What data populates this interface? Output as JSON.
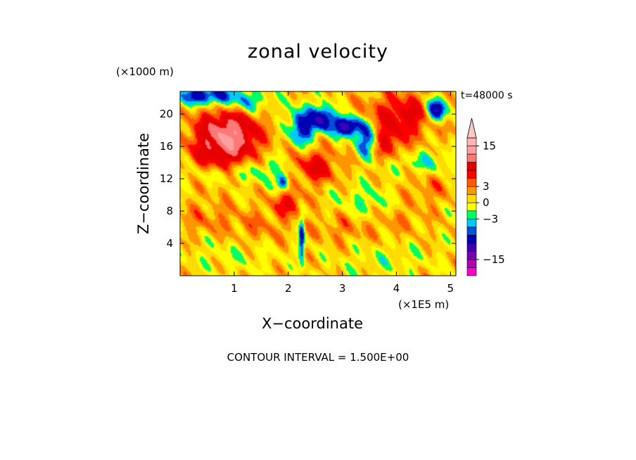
{
  "chart_data": {
    "type": "heatmap",
    "title": "zonal velocity",
    "time_label": "t=48000 s",
    "xlabel": "X−coordinate",
    "ylabel": "Z−coordinate",
    "x_unit": "(×1E5 m)",
    "y_unit": "(×1000 m)",
    "xlim": [
      0,
      5.1
    ],
    "ylim": [
      0,
      22.8
    ],
    "x_ticks": [
      1,
      2,
      3,
      4,
      5
    ],
    "y_ticks": [
      4,
      8,
      12,
      16,
      20
    ],
    "footer": "CONTOUR INTERVAL = 1.500E+00",
    "colorbar": {
      "levels": [
        -19.5,
        -18,
        -15,
        -12,
        -9,
        -6,
        -4.5,
        -3,
        -1.5,
        0,
        1.5,
        3,
        4.5,
        6,
        9,
        12,
        15,
        18,
        19.5
      ],
      "colors": [
        "#ff00cc",
        "#b400b4",
        "#7800a8",
        "#3c00b4",
        "#0000b4",
        "#0050d8",
        "#00c8ff",
        "#00ff64",
        "#ffff00",
        "#ffdc00",
        "#ff9600",
        "#ff5a00",
        "#ff0000",
        "#e60000",
        "#ff7878",
        "#ffa0a0",
        "#ffb4b4",
        "#ffc8c8"
      ],
      "tick_values": [
        15,
        3,
        0,
        -3,
        -15
      ],
      "tick_labels": [
        "15",
        "3",
        "0",
        "−3",
        "−15"
      ]
    },
    "field_blobs": [
      {
        "x": 0.7,
        "z": 16.5,
        "value": 7,
        "rx": 0.55,
        "rz": 4.0
      },
      {
        "x": 1.05,
        "z": 17.5,
        "value": 6,
        "rx": 0.5,
        "rz": 3.0
      },
      {
        "x": 0.45,
        "z": 22.3,
        "value": -9,
        "rx": 0.5,
        "rz": 1.2
      },
      {
        "x": 1.2,
        "z": 21.5,
        "value": -5,
        "rx": 0.45,
        "rz": 1.5
      },
      {
        "x": 2.25,
        "z": 18.5,
        "value": -9,
        "rx": 0.22,
        "rz": 2.2
      },
      {
        "x": 2.65,
        "z": 19.5,
        "value": -10,
        "rx": 0.2,
        "rz": 1.6
      },
      {
        "x": 3.1,
        "z": 18.5,
        "value": -12,
        "rx": 0.25,
        "rz": 1.2
      },
      {
        "x": 3.45,
        "z": 16.8,
        "value": -9,
        "rx": 0.2,
        "rz": 2.0
      },
      {
        "x": 4.75,
        "z": 20.5,
        "value": -12,
        "rx": 0.2,
        "rz": 1.5
      },
      {
        "x": 4.15,
        "z": 20.0,
        "value": 6,
        "rx": 0.7,
        "rz": 2.5
      },
      {
        "x": 2.5,
        "z": 13.5,
        "value": 6,
        "rx": 0.4,
        "rz": 2.0
      },
      {
        "x": 3.8,
        "z": 16.5,
        "value": 5,
        "rx": 0.4,
        "rz": 2.0
      },
      {
        "x": 0.7,
        "z": 12.5,
        "value": -3,
        "rx": 0.6,
        "rz": 1.2
      },
      {
        "x": 1.6,
        "z": 13.0,
        "value": -3,
        "rx": 0.5,
        "rz": 1.5
      },
      {
        "x": 3.5,
        "z": 9.0,
        "value": -3,
        "rx": 0.6,
        "rz": 2.0
      },
      {
        "x": 1.9,
        "z": 11.5,
        "value": -7,
        "rx": 0.1,
        "rz": 1.0
      },
      {
        "x": 4.5,
        "z": 14.0,
        "value": -3,
        "rx": 0.6,
        "rz": 1.5
      },
      {
        "x": 0.5,
        "z": 7.0,
        "value": 2,
        "rx": 0.6,
        "rz": 2.0
      },
      {
        "x": 1.5,
        "z": 6.0,
        "value": 2,
        "rx": 0.5,
        "rz": 2.0
      },
      {
        "x": 3.0,
        "z": 6.0,
        "value": 2,
        "rx": 0.6,
        "rz": 2.0
      },
      {
        "x": 4.0,
        "z": 7.5,
        "value": 2,
        "rx": 0.5,
        "rz": 2.0
      },
      {
        "x": 1.0,
        "z": 2.5,
        "value": -1.5,
        "rx": 0.8,
        "rz": 2.0
      },
      {
        "x": 3.8,
        "z": 2.0,
        "value": -1.5,
        "rx": 0.9,
        "rz": 2.0
      },
      {
        "x": 2.25,
        "z": 4.5,
        "value": -8,
        "rx": 0.05,
        "rz": 3.0
      },
      {
        "x": 2.0,
        "z": 9.0,
        "value": 5,
        "rx": 0.3,
        "rz": 1.5
      },
      {
        "x": 4.6,
        "z": 11.0,
        "value": 2,
        "rx": 0.5,
        "rz": 2.0
      }
    ]
  }
}
